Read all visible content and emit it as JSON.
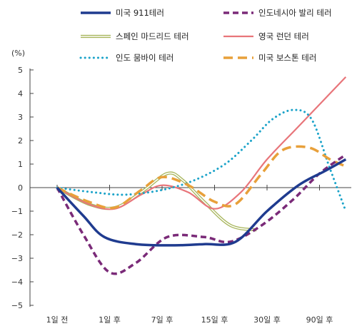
{
  "chart_data": {
    "type": "line",
    "title": "",
    "xlabel": "",
    "ylabel": "(%)",
    "ylim": [
      -5,
      5
    ],
    "yticks": [
      5,
      4,
      3,
      2,
      1,
      0,
      -1,
      -2,
      -3,
      -4,
      -5
    ],
    "categories": [
      "1일 전",
      "1일 후",
      "7일 후",
      "15일 후",
      "30일 후",
      "90일 후"
    ],
    "legend_position": "top",
    "grid": false,
    "series": [
      {
        "name": "미국 911테러",
        "color": "#1f3b8f",
        "style": "solid",
        "x": [
          0,
          0.5,
          0.9,
          1.5,
          2.2,
          2.8,
          3.4,
          4,
          4.6,
          5.1,
          5.5
        ],
        "values": [
          0,
          -1.2,
          -2.1,
          -2.4,
          -2.45,
          -2.4,
          -2.3,
          -1,
          0.1,
          0.7,
          1.2
        ]
      },
      {
        "name": "인도네시아 발리 테러",
        "color": "#7a2a78",
        "style": "dashed",
        "x": [
          0,
          0.5,
          1,
          1.5,
          2.1,
          2.8,
          3.3,
          3.9,
          4.5,
          5,
          5.5
        ],
        "values": [
          0,
          -2.0,
          -3.6,
          -3.2,
          -2.1,
          -2.1,
          -2.3,
          -1.6,
          -0.5,
          0.6,
          1.4
        ]
      },
      {
        "name": "스페인 마드리드 테러",
        "color": "#a7b55b",
        "style": "double",
        "x": [
          0,
          0.6,
          1.1,
          1.6,
          2.1,
          2.4,
          2.8,
          3.3,
          3.8
        ],
        "values": [
          0,
          -0.7,
          -0.85,
          -0.2,
          0.6,
          0.3,
          -0.6,
          -1.6,
          -1.8
        ]
      },
      {
        "name": "영국 런던 테러",
        "color": "#e8757a",
        "style": "solid",
        "x": [
          0,
          0.6,
          1.1,
          1.6,
          2.0,
          2.5,
          3.0,
          3.5,
          4.0,
          4.6,
          5.5
        ],
        "values": [
          0,
          -0.7,
          -0.9,
          -0.3,
          0.1,
          -0.2,
          -0.9,
          -0.2,
          1.2,
          2.6,
          4.7
        ]
      },
      {
        "name": "인도 뭄바이 테러",
        "color": "#1ba3c9",
        "style": "dotted",
        "x": [
          0,
          0.7,
          1.3,
          2.0,
          2.6,
          3.2,
          3.7,
          4.1,
          4.5,
          4.85,
          5.2,
          5.5
        ],
        "values": [
          0,
          -0.2,
          -0.3,
          -0.1,
          0.3,
          1.0,
          2.0,
          2.9,
          3.3,
          2.9,
          0.8,
          -1.0
        ]
      },
      {
        "name": "미국 보스톤 테러",
        "color": "#e8a03a",
        "style": "dashed",
        "x": [
          0,
          0.6,
          1.1,
          1.6,
          2.0,
          2.5,
          3.0,
          3.4,
          3.9,
          4.3,
          4.8,
          5.2,
          5.5
        ],
        "values": [
          0,
          -0.6,
          -0.85,
          -0.1,
          0.45,
          0.1,
          -0.6,
          -0.7,
          0.6,
          1.6,
          1.7,
          1.2,
          0.9
        ]
      }
    ]
  }
}
